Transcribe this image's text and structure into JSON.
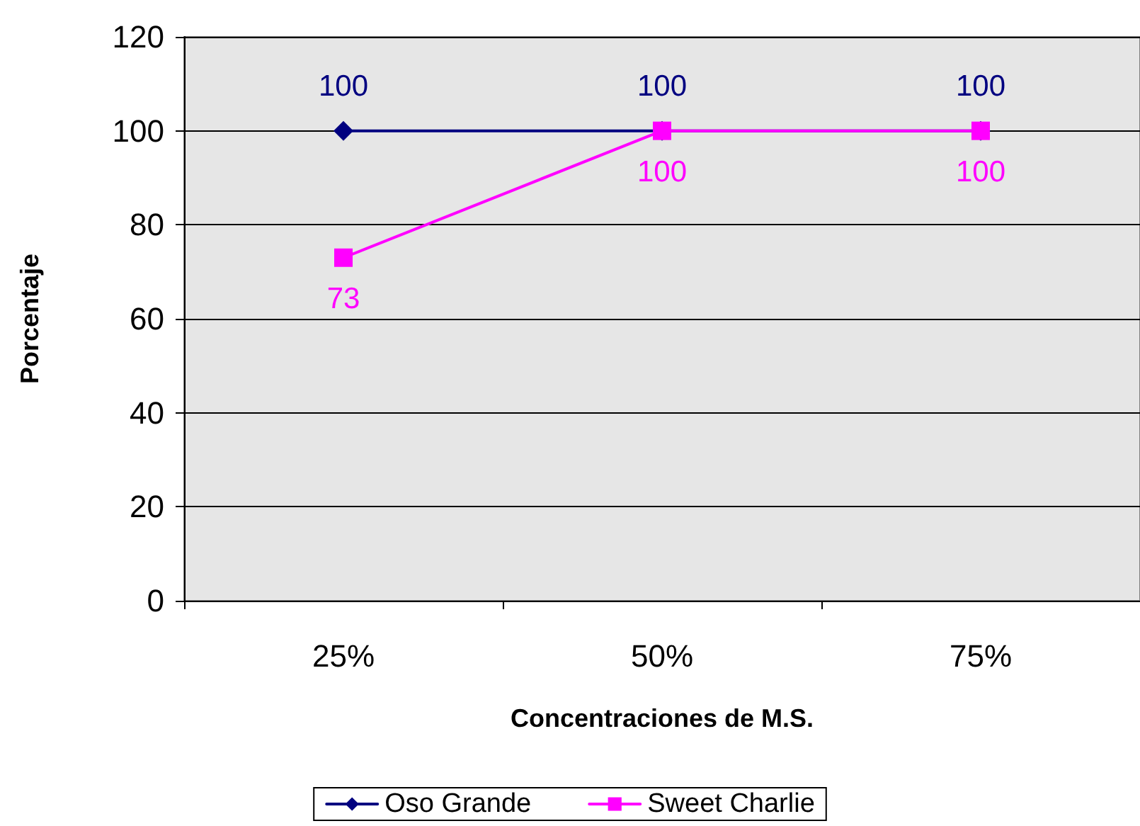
{
  "chart_data": {
    "type": "line",
    "xlabel": "Concentraciones de M.S.",
    "ylabel": "Porcentaje",
    "categories": [
      "25%",
      "50%",
      "75%"
    ],
    "series": [
      {
        "name": "Oso Grande",
        "color": "#000080",
        "values": [
          100,
          100,
          100
        ],
        "marker": "diamond"
      },
      {
        "name": "Sweet Charlie",
        "color": "#ff00ff",
        "values": [
          73,
          100,
          100
        ],
        "marker": "square"
      }
    ],
    "ylim": [
      0,
      120
    ],
    "yticks": [
      0,
      20,
      40,
      60,
      80,
      100,
      120
    ],
    "grid": "y",
    "legend": "bottom",
    "data_labels": true,
    "line_style": "solid"
  }
}
